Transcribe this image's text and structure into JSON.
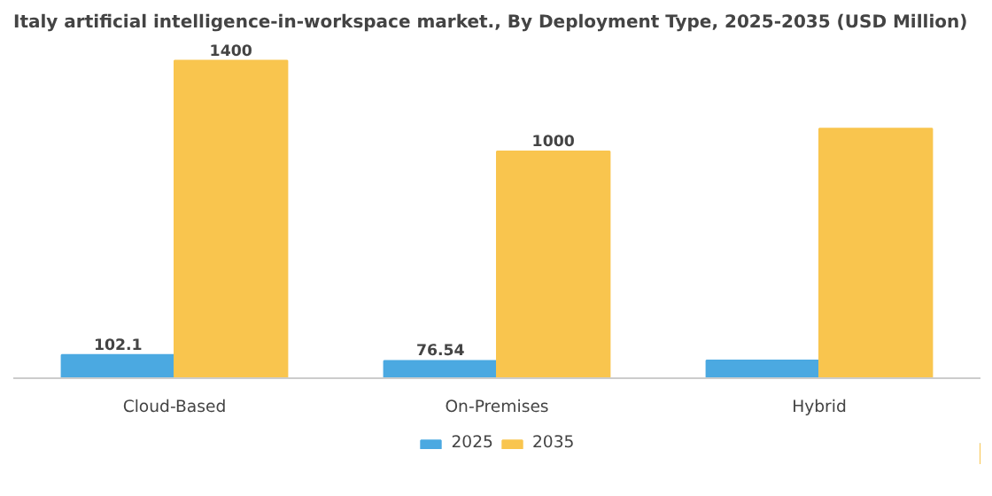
{
  "chart_data": {
    "type": "bar",
    "title": "Italy artificial intelligence-in-workspace market., By Deployment Type, 2025-2035 (USD Million)",
    "categories": [
      "Cloud-Based",
      "On-Premises",
      "Hybrid"
    ],
    "series": [
      {
        "name": "2025",
        "color": "#4ba9e1",
        "values": [
          102.1,
          76.54,
          78
        ],
        "value_labels": [
          "102.1",
          "76.54",
          null
        ]
      },
      {
        "name": "2035",
        "color": "#f9c54e",
        "values": [
          1400,
          1000,
          1100
        ],
        "value_labels": [
          "1400",
          "1000",
          null
        ]
      }
    ],
    "legend": "bottom"
  }
}
